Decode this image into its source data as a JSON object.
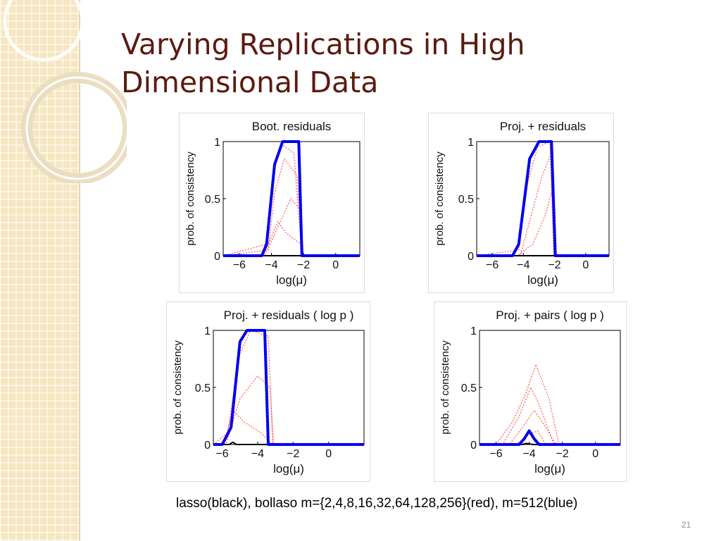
{
  "slide": {
    "title": "Varying Replications in High Dimensional Data",
    "caption": "lasso(black), bollaso m={2,4,8,16,32,64,128,256}(red), m=512(blue)",
    "slide_number": "21"
  },
  "colors": {
    "title": "#5c1a10",
    "sidebar": "#f6e7c2",
    "lasso": "#000000",
    "bolasso_replications": "#ff3030",
    "bolasso_m512": "#0000ee"
  },
  "chart_data": [
    {
      "type": "line",
      "title": "Boot. residuals",
      "xlabel": "log(μ)",
      "ylabel": "prob. of consistency",
      "xlim": [
        -7,
        1.5
      ],
      "ylim": [
        0,
        1
      ],
      "xticks": [
        "−6",
        "−4",
        "−2",
        "0"
      ],
      "yticks": [
        "0",
        "0.5",
        "1"
      ],
      "grid": false,
      "series": [
        {
          "color": "#000000",
          "x": [
            -7,
            -2.1,
            -2.05,
            -2.0,
            1.5
          ],
          "y": [
            0,
            0,
            0.02,
            0,
            0
          ]
        },
        {
          "color": "#ff3030",
          "x": [
            -7,
            -4.4,
            -3.6,
            -2.8,
            -2.2,
            -2.0,
            1.5
          ],
          "y": [
            0,
            0,
            0.25,
            0.5,
            0.4,
            0,
            0
          ]
        },
        {
          "color": "#ff3030",
          "x": [
            -7,
            -4.2,
            -3.8,
            -3.2,
            -2.4,
            -2.05,
            1.5
          ],
          "y": [
            0,
            0.05,
            0.55,
            0.85,
            0.7,
            0,
            0
          ]
        },
        {
          "color": "#ff3030",
          "x": [
            -7,
            -4.3,
            -3.9,
            -3.4,
            -2.6,
            -2.1,
            1.5
          ],
          "y": [
            0,
            0.1,
            0.7,
            0.98,
            0.9,
            0,
            0
          ]
        },
        {
          "color": "#ff3030",
          "x": [
            -7,
            -4.5,
            -3.6,
            -3.1,
            -2.15,
            -2.0,
            1.5
          ],
          "y": [
            0,
            0,
            0.3,
            0.2,
            0.1,
            0,
            0
          ]
        },
        {
          "color": "#0000ee",
          "x": [
            -7,
            -4.6,
            -4.3,
            -3.8,
            -3.3,
            -2.3,
            -2.1,
            1.5
          ],
          "y": [
            0,
            0,
            0.1,
            0.8,
            1,
            1,
            0,
            0
          ]
        }
      ]
    },
    {
      "type": "line",
      "title": "Proj. + residuals",
      "xlabel": "log(μ)",
      "ylabel": "prob. of consistency",
      "xlim": [
        -7,
        1.5
      ],
      "ylim": [
        0,
        1
      ],
      "xticks": [
        "−6",
        "−4",
        "−2",
        "0"
      ],
      "yticks": [
        "0",
        "0.5",
        "1"
      ],
      "grid": false,
      "series": [
        {
          "color": "#000000",
          "x": [
            -7,
            -2.1,
            -2.0,
            1.5
          ],
          "y": [
            0,
            0,
            0,
            0
          ]
        },
        {
          "color": "#ff3030",
          "x": [
            -7,
            -4.4,
            -3.4,
            -2.6,
            -2.1,
            -2.0,
            1.5
          ],
          "y": [
            0,
            0,
            0.1,
            0.35,
            0.6,
            0,
            0
          ]
        },
        {
          "color": "#ff3030",
          "x": [
            -7,
            -4.2,
            -3.6,
            -2.8,
            -2.2,
            -2.0,
            1.5
          ],
          "y": [
            0,
            0,
            0.3,
            0.7,
            0.9,
            0,
            0
          ]
        },
        {
          "color": "#ff3030",
          "x": [
            -7,
            -4.3,
            -3.8,
            -3.1,
            -2.3,
            -2.05,
            1.5
          ],
          "y": [
            0,
            0.05,
            0.6,
            0.95,
            1,
            0,
            0
          ]
        },
        {
          "color": "#0000ee",
          "x": [
            -7,
            -4.7,
            -4.3,
            -3.6,
            -3.0,
            -2.2,
            -1.95,
            1.5
          ],
          "y": [
            0,
            0,
            0.1,
            0.85,
            1,
            1,
            0,
            0
          ]
        }
      ]
    },
    {
      "type": "line",
      "title": "Proj. + residuals ( log p )",
      "xlabel": "log(μ)",
      "ylabel": "prob. of consistency",
      "xlim": [
        -6.5,
        2
      ],
      "ylim": [
        0,
        1
      ],
      "xticks": [
        "−6",
        "−4",
        "−2",
        "0"
      ],
      "yticks": [
        "0",
        "0.5",
        "1"
      ],
      "grid": false,
      "series": [
        {
          "color": "#000000",
          "x": [
            -6.5,
            -5.6,
            -5.4,
            -5.2,
            2
          ],
          "y": [
            0,
            0,
            0.02,
            0,
            0
          ]
        },
        {
          "color": "#ff3030",
          "x": [
            -6.5,
            -5.8,
            -5.0,
            -4.0,
            -3.3,
            -3.1,
            2
          ],
          "y": [
            0,
            0,
            0.4,
            0.6,
            0.5,
            0,
            0
          ]
        },
        {
          "color": "#ff3030",
          "x": [
            -6.5,
            -5.7,
            -5.0,
            -4.4,
            -3.4,
            -3.15,
            2
          ],
          "y": [
            0,
            0.1,
            0.8,
            1,
            0.95,
            0,
            0
          ]
        },
        {
          "color": "#ff3030",
          "x": [
            -6.5,
            -5.9,
            -5.4,
            -4.8,
            -3.8,
            -3.2,
            2
          ],
          "y": [
            0,
            0,
            0.3,
            0.2,
            0.1,
            0,
            0
          ]
        },
        {
          "color": "#0000ee",
          "x": [
            -6.5,
            -6.0,
            -5.5,
            -5.0,
            -4.6,
            -3.6,
            -3.4,
            2
          ],
          "y": [
            0,
            0,
            0.15,
            0.9,
            1,
            1,
            0,
            0
          ]
        }
      ]
    },
    {
      "type": "line",
      "title": "Proj. + pairs ( log p )",
      "xlabel": "log(μ)",
      "ylabel": "prob. of consistency",
      "xlim": [
        -7,
        1.5
      ],
      "ylim": [
        0,
        1
      ],
      "xticks": [
        "−6",
        "−4",
        "−2",
        "0"
      ],
      "yticks": [
        "0",
        "0.5",
        "1"
      ],
      "grid": false,
      "series": [
        {
          "color": "#000000",
          "x": [
            -7,
            -4.4,
            -4.2,
            -3.8,
            1.5
          ],
          "y": [
            0,
            0,
            0.01,
            0,
            0
          ]
        },
        {
          "color": "#ff3030",
          "x": [
            -7,
            -6.0,
            -5.0,
            -4.2,
            -3.6,
            -2.8,
            -2.2,
            1.5
          ],
          "y": [
            0,
            0,
            0.2,
            0.45,
            0.7,
            0.4,
            0,
            0
          ]
        },
        {
          "color": "#ff3030",
          "x": [
            -7,
            -5.6,
            -4.6,
            -3.9,
            -3.4,
            -2.5,
            1.5
          ],
          "y": [
            0,
            0,
            0.25,
            0.5,
            0.35,
            0,
            0
          ]
        },
        {
          "color": "#ff3030",
          "x": [
            -7,
            -5.2,
            -4.4,
            -3.7,
            -3.0,
            -2.4,
            1.5
          ],
          "y": [
            0,
            0,
            0.15,
            0.3,
            0.15,
            0,
            0
          ]
        },
        {
          "color": "#ff3030",
          "x": [
            -7,
            -4.8,
            -4.1,
            -3.5,
            -3.0,
            1.5
          ],
          "y": [
            0,
            0,
            0.08,
            0.12,
            0,
            0
          ]
        },
        {
          "color": "#0000ee",
          "x": [
            -7,
            -4.6,
            -4.3,
            -4.0,
            -3.7,
            -3.4,
            1.5
          ],
          "y": [
            0,
            0,
            0.05,
            0.12,
            0.05,
            0,
            0
          ]
        }
      ]
    }
  ]
}
